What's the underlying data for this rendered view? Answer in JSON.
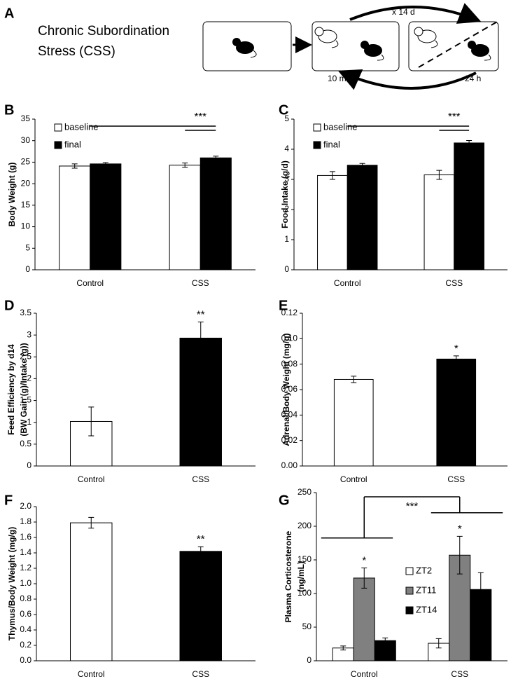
{
  "panel_a": {
    "letter": "A",
    "title": [
      "Chronic Subordination",
      "Stress (CSS)"
    ],
    "repeat": "x 14 d",
    "interval_1": "10 m",
    "interval_2": "24 h"
  },
  "chart_data": [
    {
      "type": "bar",
      "panel": "B",
      "ylabel": "Body Weight (g)",
      "categories": [
        "Control",
        "CSS"
      ],
      "series": [
        {
          "name": "baseline",
          "color": "#ffffff",
          "values": [
            24.1,
            24.3
          ],
          "errors": [
            0.5,
            0.5
          ]
        },
        {
          "name": "final",
          "color": "#000000",
          "values": [
            24.6,
            26.0
          ],
          "errors": [
            0.3,
            0.4
          ]
        }
      ],
      "ylim": [
        0,
        35
      ],
      "yticks": [
        0,
        5,
        10,
        15,
        20,
        25,
        30,
        35
      ],
      "legend": "upper left",
      "bracket": "***"
    },
    {
      "type": "bar",
      "panel": "C",
      "ylabel": "Food Intake (g/d)",
      "categories": [
        "Control",
        "CSS"
      ],
      "series": [
        {
          "name": "baseline",
          "color": "#ffffff",
          "values": [
            3.13,
            3.15
          ],
          "errors": [
            0.13,
            0.15
          ]
        },
        {
          "name": "final",
          "color": "#000000",
          "values": [
            3.47,
            4.21
          ],
          "errors": [
            0.06,
            0.08
          ]
        }
      ],
      "ylim": [
        0,
        5
      ],
      "yticks": [
        0,
        1,
        2,
        3,
        4,
        5
      ],
      "legend": "upper left",
      "bracket": "***"
    },
    {
      "type": "bar",
      "panel": "D",
      "ylabel": [
        "Feed Efficiency by d14",
        "(BW Gain (g)/Intake (g))"
      ],
      "categories": [
        "Control",
        "CSS"
      ],
      "series": [
        {
          "color": "#000000",
          "colors": [
            "#ffffff",
            "#000000"
          ],
          "values": [
            1.02,
            2.93
          ],
          "errors": [
            0.33,
            0.37
          ],
          "significance": [
            null,
            "**"
          ]
        }
      ],
      "ylim": [
        0,
        3.5
      ],
      "yticks": [
        0,
        0.5,
        1,
        1.5,
        2,
        2.5,
        3,
        3.5
      ]
    },
    {
      "type": "bar",
      "panel": "E",
      "ylabel": "Adrenal/Body Weight (mg/g)",
      "categories": [
        "Control",
        "CSS"
      ],
      "series": [
        {
          "color": "#000000",
          "colors": [
            "#ffffff",
            "#000000"
          ],
          "values": [
            0.068,
            0.084
          ],
          "errors": [
            0.0025,
            0.0025
          ],
          "significance": [
            null,
            "*"
          ]
        }
      ],
      "ylim": [
        0,
        0.12
      ],
      "yticks": [
        {
          "value": 0,
          "label": "0.00"
        },
        {
          "value": 0.02,
          "label": "0.02"
        },
        {
          "value": 0.04,
          "label": "0.04"
        },
        {
          "value": 0.06,
          "label": "0.06"
        },
        {
          "value": 0.08,
          "label": "0.08"
        },
        {
          "value": 0.1,
          "label": "0.10"
        },
        {
          "value": 0.12,
          "label": "0.12"
        }
      ]
    },
    {
      "type": "bar",
      "panel": "F",
      "ylabel": "Thymus/Body Weight (mg/g)",
      "categories": [
        "Control",
        "CSS"
      ],
      "series": [
        {
          "color": "#000000",
          "colors": [
            "#ffffff",
            "#000000"
          ],
          "values": [
            1.79,
            1.42
          ],
          "errors": [
            0.07,
            0.06
          ],
          "significance": [
            null,
            "**"
          ]
        }
      ],
      "ylim": [
        0,
        2
      ],
      "yticks": [
        {
          "value": 0,
          "label": "0.0"
        },
        {
          "value": 0.2,
          "label": "0.2"
        },
        {
          "value": 0.4,
          "label": "0.4"
        },
        {
          "value": 0.6,
          "label": "0.6"
        },
        {
          "value": 0.8,
          "label": "0.8"
        },
        {
          "value": 1,
          "label": "1.0"
        },
        {
          "value": 1.2,
          "label": "1.2"
        },
        {
          "value": 1.4,
          "label": "1.4"
        },
        {
          "value": 1.6,
          "label": "1.6"
        },
        {
          "value": 1.8,
          "label": "1.8"
        },
        {
          "value": 2,
          "label": "2.0"
        }
      ]
    },
    {
      "type": "bar",
      "panel": "G",
      "ylabel": [
        "Plasma Corticosterone",
        "(ng/mL)"
      ],
      "categories": [
        "Control",
        "CSS"
      ],
      "series": [
        {
          "name": "ZT2",
          "color": "#ffffff",
          "values": [
            19,
            26
          ],
          "errors": [
            3,
            7
          ]
        },
        {
          "name": "ZT11",
          "color": "#808080",
          "values": [
            123,
            157
          ],
          "errors": [
            15,
            28
          ],
          "significance": [
            "*",
            "*"
          ]
        },
        {
          "name": "ZT14",
          "color": "#000000",
          "values": [
            30,
            106
          ],
          "errors": [
            4,
            25
          ]
        }
      ],
      "ylim": [
        0,
        250
      ],
      "yticks": [
        0,
        50,
        100,
        150,
        200,
        250
      ],
      "legend": "center right",
      "bracket": "***"
    }
  ]
}
